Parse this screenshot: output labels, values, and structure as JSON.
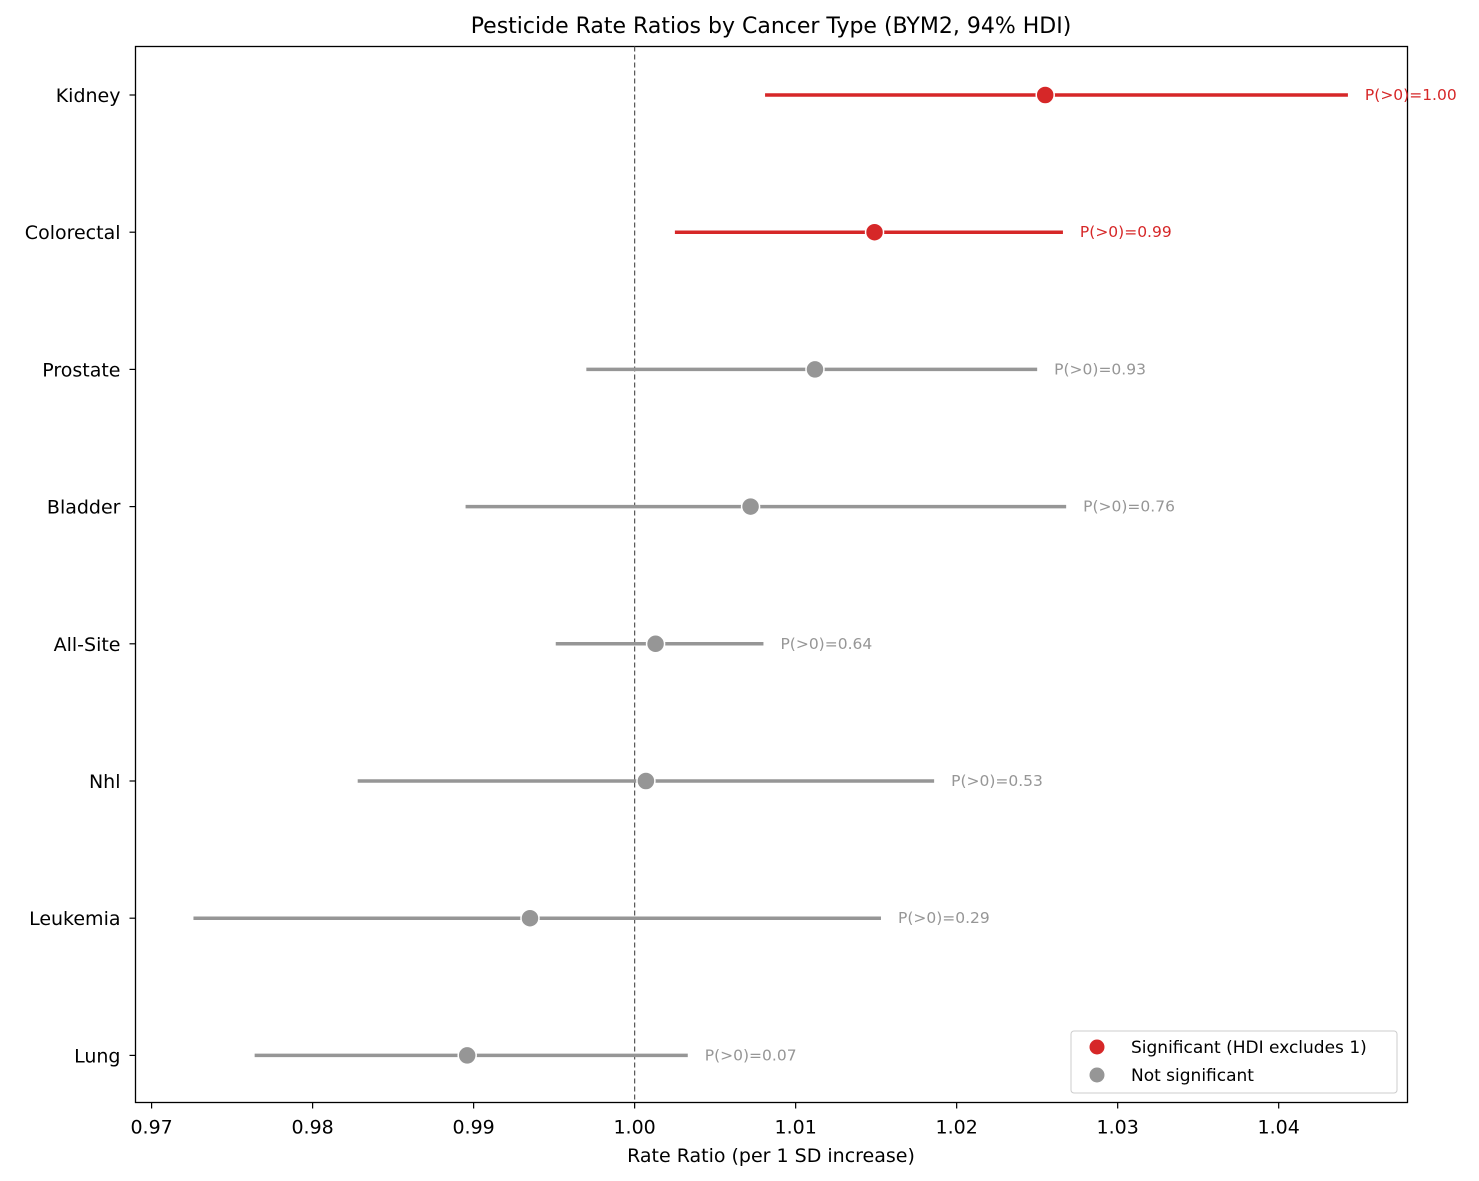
{
  "chart_data": {
    "type": "forest",
    "title": "Pesticide Rate Ratios by Cancer Type (BYM2, 94% HDI)",
    "xlabel": "Rate Ratio (per 1 SD increase)",
    "ylabel": "",
    "xlim": [
      0.969,
      1.048
    ],
    "x_ticks": [
      "0.97",
      "0.98",
      "0.99",
      "1.00",
      "1.01",
      "1.02",
      "1.03",
      "1.04"
    ],
    "reference_line": 1.0,
    "grid": false,
    "legend_position": "lower-right",
    "colors": {
      "significant": "#d62728",
      "not_significant": "#969696",
      "reference": "#555555"
    },
    "legend": [
      {
        "label": "Significant (HDI excludes 1)",
        "color_key": "significant"
      },
      {
        "label": "Not significant",
        "color_key": "not_significant"
      }
    ],
    "rows": [
      {
        "category": "Kidney",
        "estimate": 1.0255,
        "hdi_low": 1.0081,
        "hdi_high": 1.0443,
        "annotation": "P(>0)=1.00",
        "significant": true
      },
      {
        "category": "Colorectal",
        "estimate": 1.0149,
        "hdi_low": 1.0025,
        "hdi_high": 1.0266,
        "annotation": "P(>0)=0.99",
        "significant": true
      },
      {
        "category": "Prostate",
        "estimate": 1.0112,
        "hdi_low": 0.997,
        "hdi_high": 1.025,
        "annotation": "P(>0)=0.93",
        "significant": false
      },
      {
        "category": "Bladder",
        "estimate": 1.0072,
        "hdi_low": 0.9895,
        "hdi_high": 1.0268,
        "annotation": "P(>0)=0.76",
        "significant": false
      },
      {
        "category": "All-Site",
        "estimate": 1.0013,
        "hdi_low": 0.9951,
        "hdi_high": 1.008,
        "annotation": "P(>0)=0.64",
        "significant": false
      },
      {
        "category": "Nhl",
        "estimate": 1.0007,
        "hdi_low": 0.9828,
        "hdi_high": 1.0186,
        "annotation": "P(>0)=0.53",
        "significant": false
      },
      {
        "category": "Leukemia",
        "estimate": 0.9935,
        "hdi_low": 0.9726,
        "hdi_high": 1.0153,
        "annotation": "P(>0)=0.29",
        "significant": false
      },
      {
        "category": "Lung",
        "estimate": 0.9896,
        "hdi_low": 0.9764,
        "hdi_high": 1.0033,
        "annotation": "P(>0)=0.07",
        "significant": false
      }
    ]
  }
}
